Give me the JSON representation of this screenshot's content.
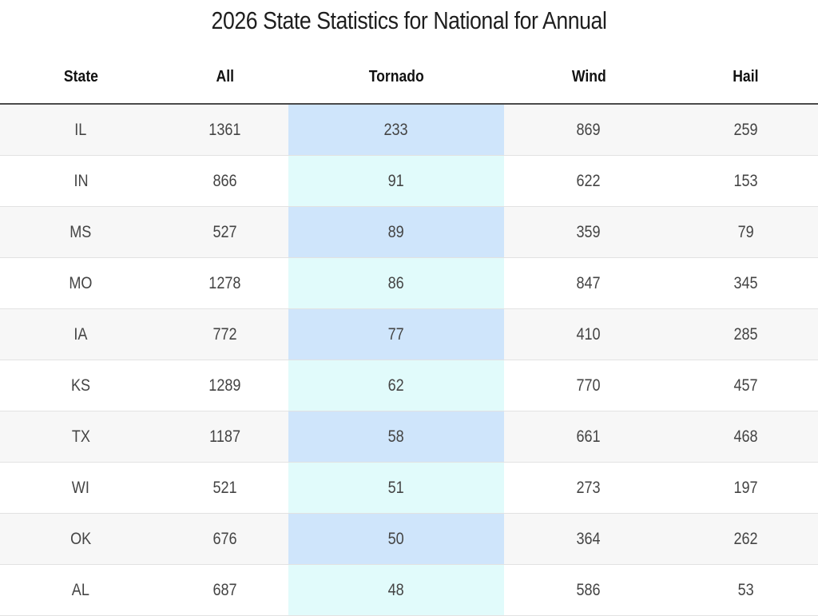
{
  "title": "2026 State Statistics for National for Annual",
  "columns": {
    "state": "State",
    "all": "All",
    "tornado": "Tornado",
    "wind": "Wind",
    "hail": "Hail"
  },
  "rows": [
    {
      "state": "IL",
      "all": "1361",
      "tornado": "233",
      "wind": "869",
      "hail": "259"
    },
    {
      "state": "IN",
      "all": "866",
      "tornado": "91",
      "wind": "622",
      "hail": "153"
    },
    {
      "state": "MS",
      "all": "527",
      "tornado": "89",
      "wind": "359",
      "hail": "79"
    },
    {
      "state": "MO",
      "all": "1278",
      "tornado": "86",
      "wind": "847",
      "hail": "345"
    },
    {
      "state": "IA",
      "all": "772",
      "tornado": "77",
      "wind": "410",
      "hail": "285"
    },
    {
      "state": "KS",
      "all": "1289",
      "tornado": "62",
      "wind": "770",
      "hail": "457"
    },
    {
      "state": "TX",
      "all": "1187",
      "tornado": "58",
      "wind": "661",
      "hail": "468"
    },
    {
      "state": "WI",
      "all": "521",
      "tornado": "51",
      "wind": "273",
      "hail": "197"
    },
    {
      "state": "OK",
      "all": "676",
      "tornado": "50",
      "wind": "364",
      "hail": "262"
    },
    {
      "state": "AL",
      "all": "687",
      "tornado": "48",
      "wind": "586",
      "hail": "53"
    }
  ],
  "colors": {
    "header_rule": "#4a4a4a",
    "stripe_odd": "#f7f7f7",
    "stripe_even": "#ffffff",
    "tornado_highlight_odd": "#cfe5fb",
    "tornado_highlight_even": "#e1fbfb"
  }
}
